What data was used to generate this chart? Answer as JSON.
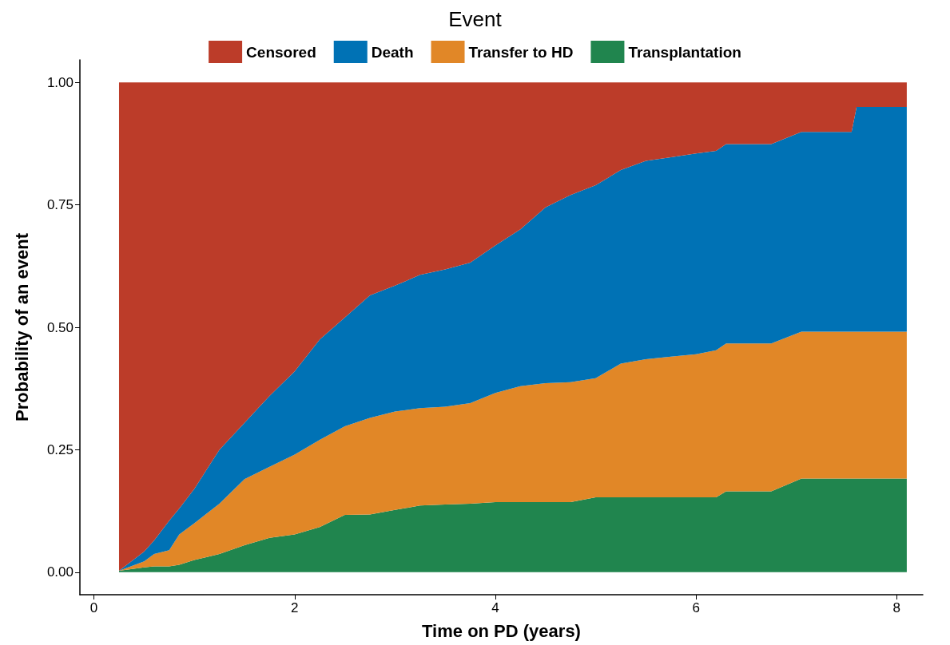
{
  "chart_data": {
    "type": "area",
    "stacked": true,
    "legend_title": "Event",
    "legend": "top",
    "xlabel": "Time on PD (years)",
    "ylabel": "Probability of an event",
    "grid": false,
    "x": [
      0.25,
      0.5,
      0.6,
      0.75,
      0.85,
      1.0,
      1.25,
      1.5,
      1.75,
      2.0,
      2.25,
      2.5,
      2.75,
      3.0,
      3.25,
      3.5,
      3.75,
      4.0,
      4.25,
      4.5,
      4.75,
      5.0,
      5.25,
      5.5,
      5.75,
      6.0,
      6.2,
      6.3,
      6.75,
      7.05,
      7.55,
      7.6,
      8.1
    ],
    "xlim": [
      -0.14,
      8.26
    ],
    "xticks": [
      0,
      2,
      4,
      6,
      8
    ],
    "ylim": [
      -0.046,
      1.046
    ],
    "yticks": [
      {
        "value": 0,
        "label": "0.00"
      },
      {
        "value": 0.25,
        "label": "0.25"
      },
      {
        "value": 0.5,
        "label": "0.50"
      },
      {
        "value": 0.75,
        "label": "0.75"
      },
      {
        "value": 1,
        "label": "1.00"
      }
    ],
    "series": [
      {
        "name": "Transplantation",
        "color": "#20854e",
        "values": [
          0.003,
          0.01,
          0.012,
          0.012,
          0.015,
          0.025,
          0.037,
          0.055,
          0.07,
          0.077,
          0.092,
          0.117,
          0.118,
          0.127,
          0.136,
          0.138,
          0.14,
          0.143,
          0.143,
          0.143,
          0.143,
          0.153,
          0.153,
          0.153,
          0.153,
          0.153,
          0.153,
          0.165,
          0.165,
          0.191,
          0.191,
          0.191,
          0.191
        ]
      },
      {
        "name": "Transfer to HD",
        "color": "#e18727",
        "values": [
          0,
          0.012,
          0.025,
          0.033,
          0.062,
          0.075,
          0.103,
          0.135,
          0.145,
          0.163,
          0.178,
          0.181,
          0.197,
          0.201,
          0.199,
          0.2,
          0.205,
          0.223,
          0.237,
          0.243,
          0.245,
          0.243,
          0.273,
          0.282,
          0.287,
          0.292,
          0.3,
          0.302,
          0.302,
          0.3,
          0.3,
          0.3,
          0.3
        ]
      },
      {
        "name": "Death",
        "color": "#0072b5",
        "values": [
          0,
          0.02,
          0.028,
          0.06,
          0.053,
          0.07,
          0.11,
          0.115,
          0.145,
          0.17,
          0.205,
          0.222,
          0.25,
          0.257,
          0.272,
          0.28,
          0.287,
          0.301,
          0.32,
          0.359,
          0.382,
          0.394,
          0.395,
          0.405,
          0.407,
          0.41,
          0.407,
          0.407,
          0.407,
          0.408,
          0.408,
          0.459,
          0.459
        ]
      },
      {
        "name": "Censored",
        "color": "#bc3c29",
        "values": [
          0.997,
          0.958,
          0.935,
          0.895,
          0.87,
          0.83,
          0.75,
          0.695,
          0.64,
          0.59,
          0.525,
          0.48,
          0.435,
          0.415,
          0.393,
          0.382,
          0.368,
          0.333,
          0.3,
          0.255,
          0.23,
          0.21,
          0.179,
          0.16,
          0.153,
          0.145,
          0.14,
          0.126,
          0.126,
          0.101,
          0.101,
          0.05,
          0.05
        ]
      }
    ]
  }
}
